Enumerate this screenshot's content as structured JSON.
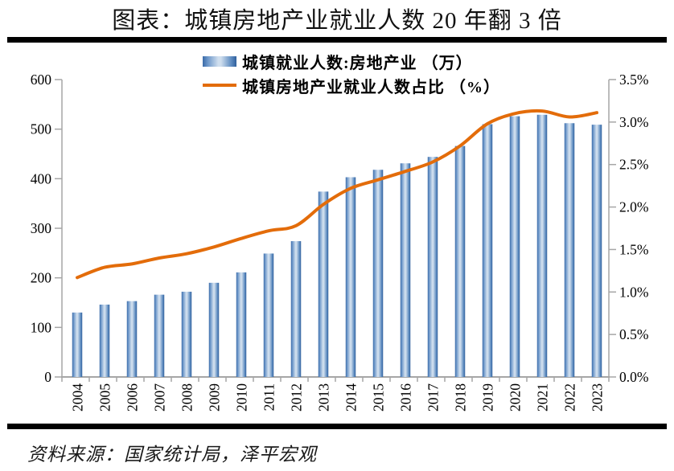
{
  "title": "图表：城镇房地产业就业人数 20 年翻 3 倍",
  "source": "资料来源：国家统计局，泽平宏观",
  "legend": {
    "bar_label": "城镇就业人数:房地产业 （万）",
    "line_label": "城镇房地产业就业人数占比 （%）"
  },
  "colors": {
    "bar_edge_left": "#3a6aa8",
    "bar_light_mid": "#cfdeee",
    "bar_edge_right": "#2f5f9b",
    "bar_inner": "#6d97c9",
    "line": "#e36c0a",
    "axis": "#a6a6a6",
    "rule": "#000000",
    "text": "#000000"
  },
  "chart_data": {
    "type": "bar",
    "subtype": "bar+line dual-axis",
    "categories": [
      "2004",
      "2005",
      "2006",
      "2007",
      "2008",
      "2009",
      "2010",
      "2011",
      "2012",
      "2013",
      "2014",
      "2015",
      "2016",
      "2017",
      "2018",
      "2019",
      "2020",
      "2021",
      "2022",
      "2023"
    ],
    "series": [
      {
        "name": "城镇就业人数:房地产业 （万）",
        "type": "bar",
        "axis": "left",
        "values": [
          130,
          146,
          153,
          166,
          172,
          190,
          211,
          249,
          274,
          374,
          403,
          418,
          431,
          444,
          466,
          510,
          526,
          529,
          512,
          509
        ]
      },
      {
        "name": "城镇房地产业就业人数占比 （%）",
        "type": "line",
        "axis": "right",
        "values": [
          1.17,
          1.29,
          1.33,
          1.4,
          1.45,
          1.53,
          1.63,
          1.72,
          1.78,
          2.03,
          2.22,
          2.32,
          2.42,
          2.53,
          2.72,
          2.98,
          3.1,
          3.13,
          3.06,
          3.11
        ]
      }
    ],
    "title": "图表：城镇房地产业就业人数 20 年翻 3 倍",
    "xlabel": "",
    "ylabel_left": "",
    "ylabel_right": "",
    "left_axis": {
      "min": 0,
      "max": 600,
      "ticks": [
        0,
        100,
        200,
        300,
        400,
        500,
        600
      ]
    },
    "right_axis": {
      "min": 0,
      "max": 3.5,
      "step": 0.5,
      "tick_labels": [
        "0.0%",
        "0.5%",
        "1.0%",
        "1.5%",
        "2.0%",
        "2.5%",
        "3.0%",
        "3.5%"
      ]
    },
    "grid": false,
    "legend_position": "top-center",
    "x_tick_label_rotation": -90
  }
}
